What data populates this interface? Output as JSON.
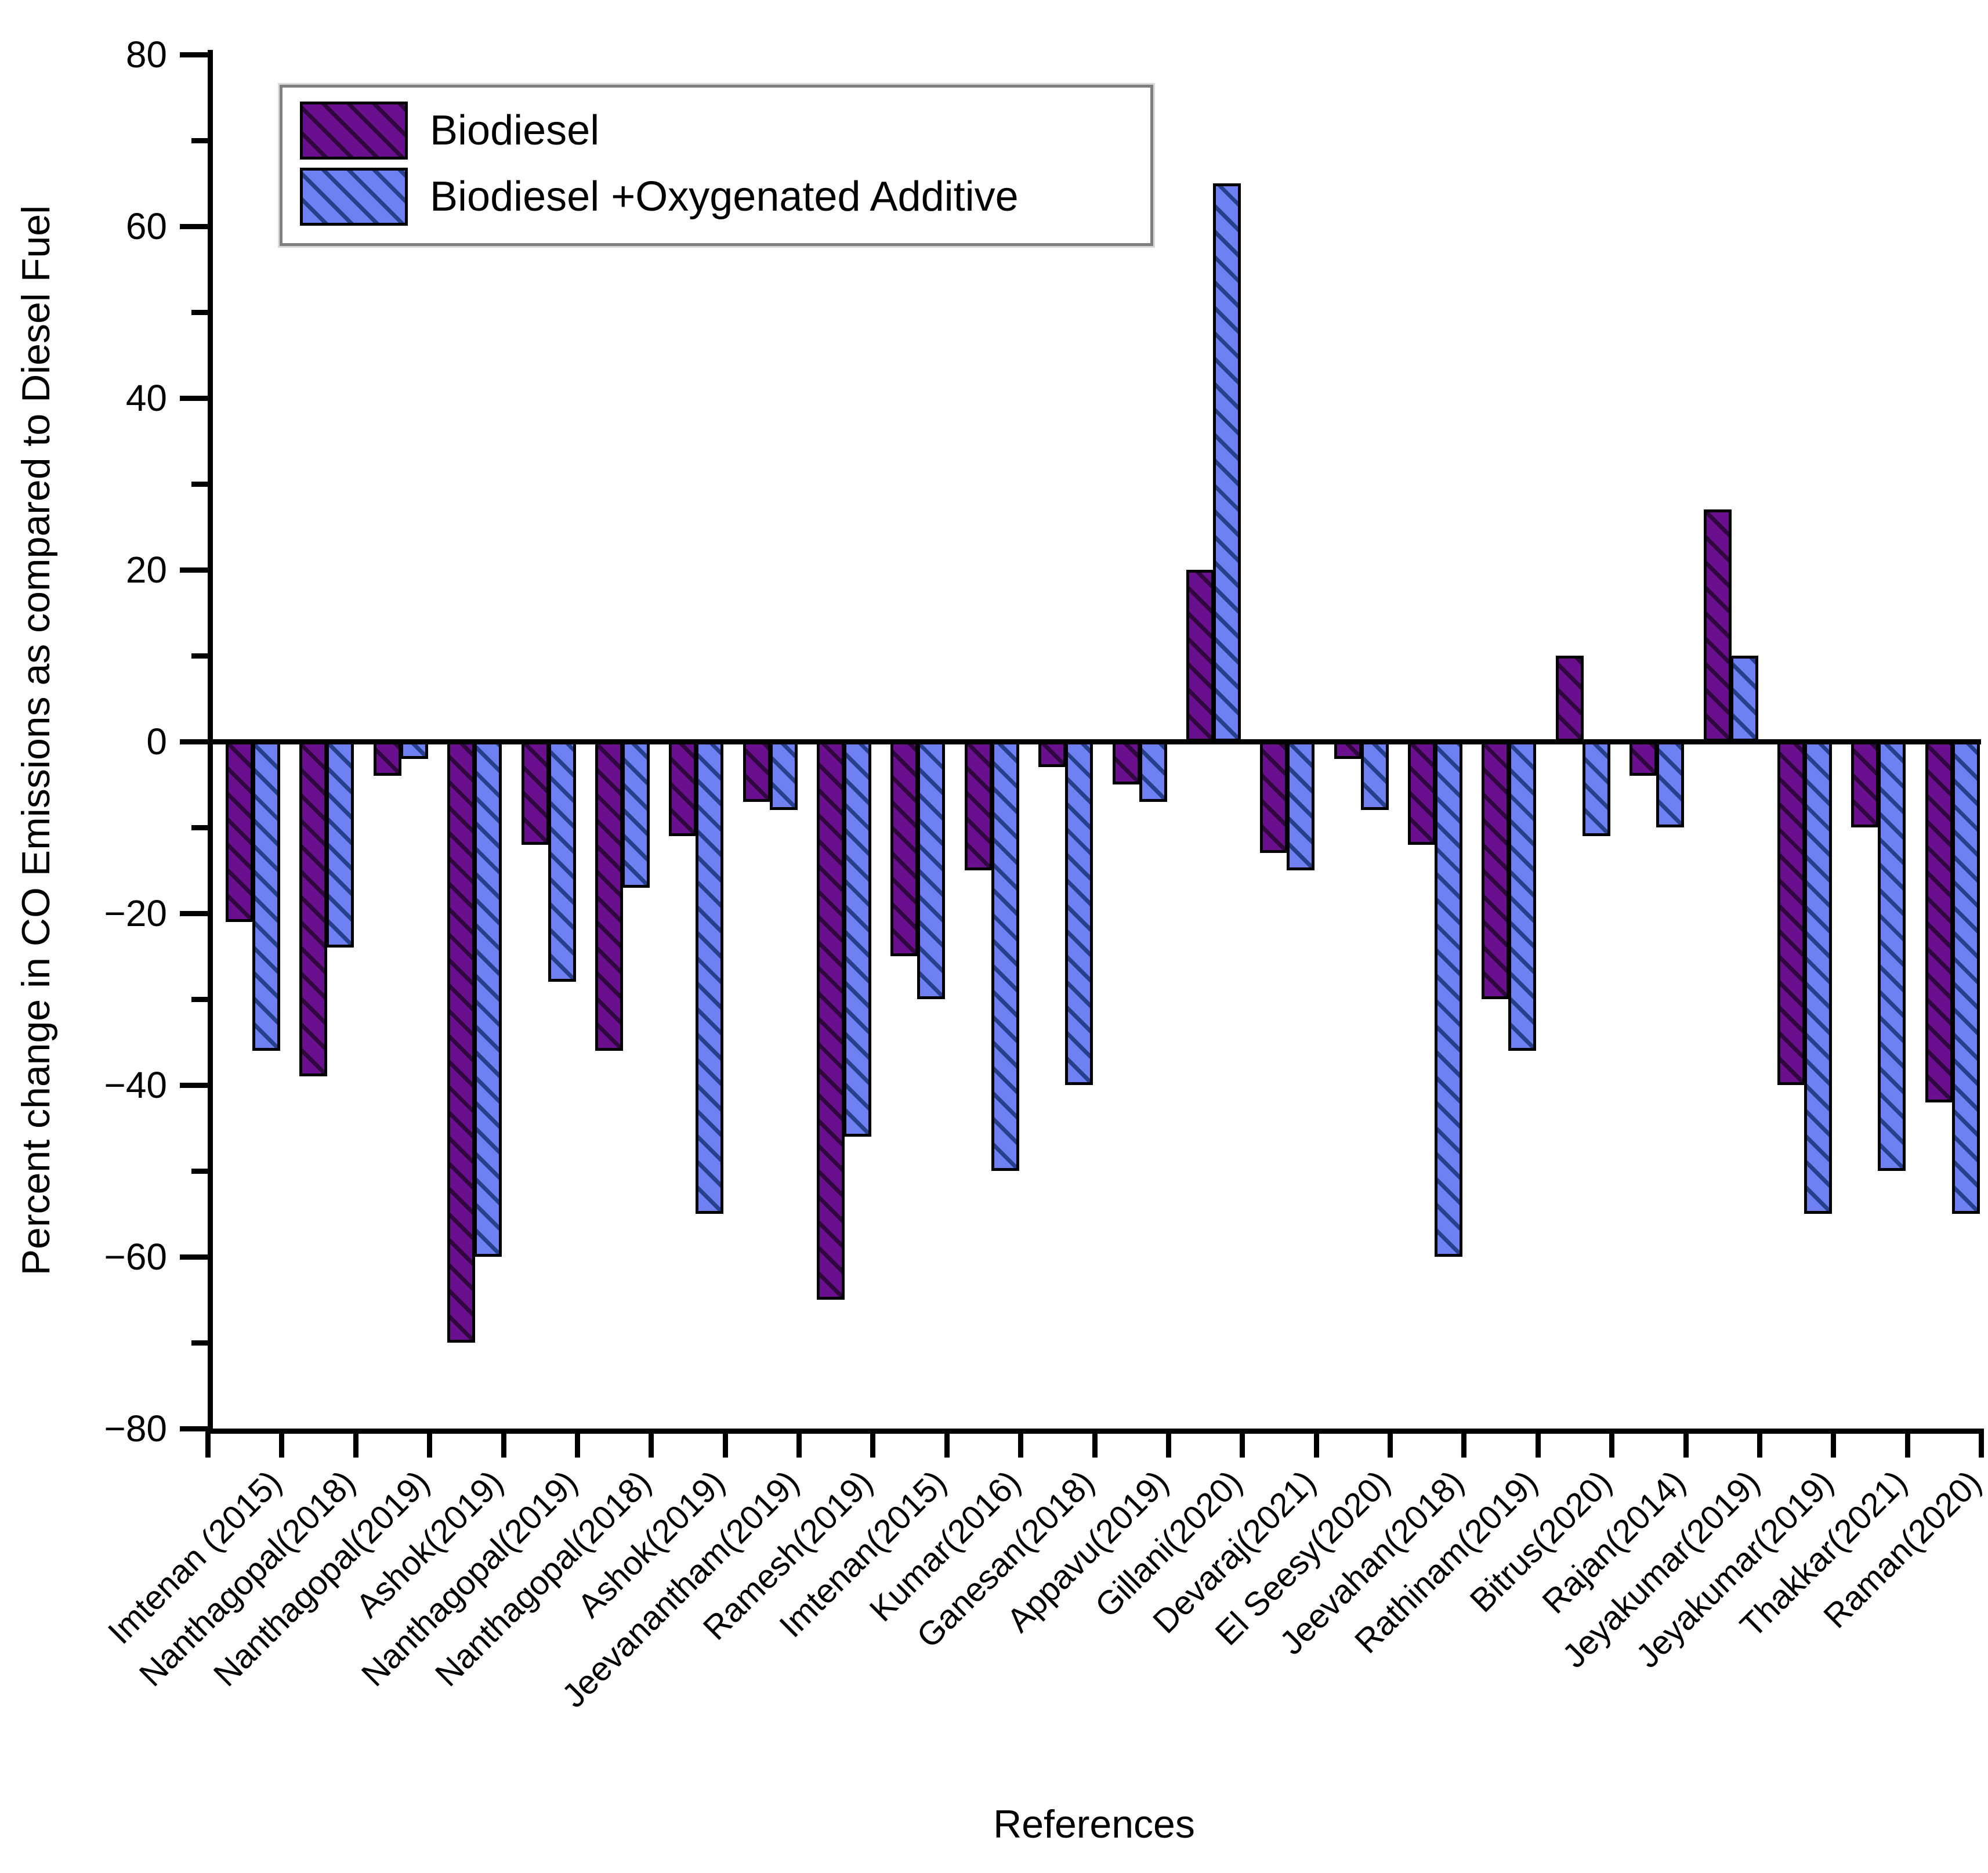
{
  "chart_data": {
    "type": "bar",
    "title": "",
    "xlabel": "References",
    "ylabel": "Percent change in CO Emissions as compared to Diesel Fuel",
    "ylim": [
      -80,
      80
    ],
    "ytick_step": 20,
    "minor_tick_step": 10,
    "ytick_labels": [
      "80",
      "60",
      "40",
      "20",
      "0",
      "−20",
      "−40",
      "−60",
      "−80"
    ],
    "grid": false,
    "legend_position": "top-left",
    "categories": [
      "Imtenan (2015)",
      "Nanthagopal(2018)",
      "Nanthagopal(2019)",
      "Ashok(2019)",
      "Nanthagopal(2019)",
      "Nanthagopal(2018)",
      "Ashok(2019)",
      "Jeevanantham(2019)",
      "Ramesh(2019)",
      "Imtenan(2015)",
      "Kumar(2016)",
      "Ganesan(2018)",
      "Appavu(2019)",
      "Gillani(2020)",
      "Devaraj(2021)",
      "El Seesy(2020)",
      "Jeevahan(2018)",
      "Rathinam(2019)",
      "Bitrus(2020)",
      "Rajan(2014)",
      "Jeyakumar(2019)",
      "Jeyakumar(2019)",
      "Thakkar(2021)",
      "Raman(2020)"
    ],
    "series": [
      {
        "name": "Biodiesel",
        "fill_color": "#6a0f8e",
        "hatch_color": "#30083f",
        "values": [
          -21,
          -39,
          -4,
          -70,
          -12,
          -36,
          -11,
          -7,
          -65,
          -25,
          -15,
          -3,
          -5,
          20,
          -13,
          -2,
          -12,
          -30,
          10,
          -4,
          27,
          -40,
          -10,
          -42
        ]
      },
      {
        "name": "Biodiesel +Oxygenated Additive",
        "fill_color": "#6f80f2",
        "hatch_color": "#27408b",
        "values": [
          -36,
          -24,
          -2,
          -60,
          -28,
          -17,
          -55,
          -8,
          -46,
          -30,
          -50,
          -40,
          -7,
          65,
          -15,
          -8,
          -60,
          -36,
          -11,
          -10,
          10,
          -55,
          -50,
          -55
        ]
      }
    ]
  }
}
